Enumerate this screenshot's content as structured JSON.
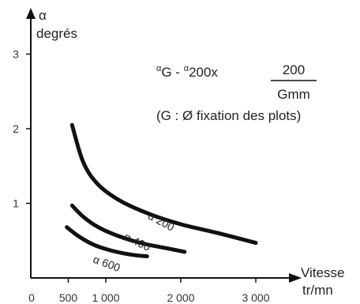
{
  "chart_data": {
    "type": "line",
    "title": "",
    "xlabel": "Vitesse",
    "xunit": "tr/mn",
    "ylabel_symbol": "α",
    "ylabel": "degrés",
    "xlim": [
      0,
      3300
    ],
    "ylim": [
      0,
      3.3
    ],
    "x_ticks": [
      {
        "value": 0,
        "label": "0"
      },
      {
        "value": 500,
        "label": "500"
      },
      {
        "value": 1000,
        "label": "1 000"
      },
      {
        "value": 2000,
        "label": "2 000"
      },
      {
        "value": 3000,
        "label": "3 000"
      }
    ],
    "y_ticks": [
      {
        "value": 1,
        "label": "1"
      },
      {
        "value": 2,
        "label": "2"
      },
      {
        "value": 3,
        "label": "3"
      }
    ],
    "grid": false,
    "legend": "none",
    "series": [
      {
        "name": "α 200",
        "points": [
          [
            550,
            2.05
          ],
          [
            700,
            1.55
          ],
          [
            900,
            1.25
          ],
          [
            1200,
            1.03
          ],
          [
            1600,
            0.85
          ],
          [
            2000,
            0.72
          ],
          [
            2500,
            0.6
          ],
          [
            3000,
            0.47
          ]
        ],
        "label_at": [
          1550,
          0.8
        ],
        "label_angle": 28
      },
      {
        "name": "α 400",
        "points": [
          [
            550,
            0.97
          ],
          [
            700,
            0.82
          ],
          [
            900,
            0.68
          ],
          [
            1200,
            0.55
          ],
          [
            1500,
            0.46
          ],
          [
            1800,
            0.4
          ],
          [
            2050,
            0.35
          ]
        ],
        "label_at": [
          1230,
          0.52
        ],
        "label_angle": 26
      },
      {
        "name": "α 600",
        "points": [
          [
            480,
            0.68
          ],
          [
            650,
            0.55
          ],
          [
            850,
            0.44
          ],
          [
            1100,
            0.36
          ],
          [
            1350,
            0.31
          ],
          [
            1550,
            0.29
          ]
        ],
        "label_at": [
          820,
          0.21
        ],
        "label_angle": 20
      }
    ],
    "annotations": {
      "formula_sup1": "α",
      "formula_text1": "G - ",
      "formula_sup2": "α",
      "formula_text2": "200x",
      "numerator": "200",
      "denominator": "Gmm",
      "note": "(G : Ø fixation des plots)"
    }
  }
}
